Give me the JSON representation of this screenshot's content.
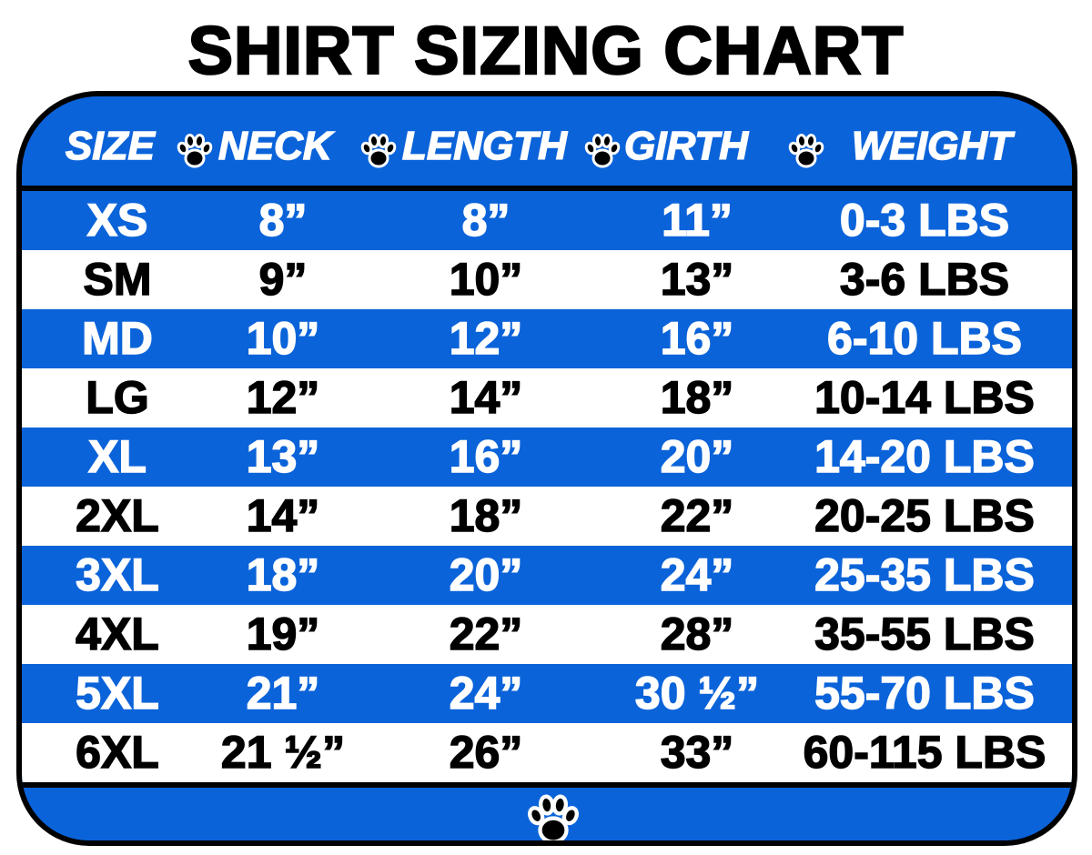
{
  "title": "SHIRT SIZING CHART",
  "colors": {
    "blue": "#0b63d9",
    "white": "#ffffff",
    "black": "#000000"
  },
  "icons": {
    "separator": "paw-icon",
    "footer": "paw-icon"
  },
  "headers": [
    "SIZE",
    "NECK",
    "LENGTH",
    "GIRTH",
    "WEIGHT"
  ],
  "rows": [
    {
      "size": "XS",
      "neck": "8”",
      "length": "8”",
      "girth": "11”",
      "weight": "0-3 LBS"
    },
    {
      "size": "SM",
      "neck": "9”",
      "length": "10”",
      "girth": "13”",
      "weight": "3-6 LBS"
    },
    {
      "size": "MD",
      "neck": "10”",
      "length": "12”",
      "girth": "16”",
      "weight": "6-10 LBS"
    },
    {
      "size": "LG",
      "neck": "12”",
      "length": "14”",
      "girth": "18”",
      "weight": "10-14 LBS"
    },
    {
      "size": "XL",
      "neck": "13”",
      "length": "16”",
      "girth": "20”",
      "weight": "14-20 LBS"
    },
    {
      "size": "2XL",
      "neck": "14”",
      "length": "18”",
      "girth": "22”",
      "weight": "20-25 LBS"
    },
    {
      "size": "3XL",
      "neck": "18”",
      "length": "20”",
      "girth": "24”",
      "weight": "25-35 LBS"
    },
    {
      "size": "4XL",
      "neck": "19”",
      "length": "22”",
      "girth": "28”",
      "weight": "35-55 LBS"
    },
    {
      "size": "5XL",
      "neck": "21”",
      "length": "24”",
      "girth": "30 ½”",
      "weight": "55-70 LBS"
    },
    {
      "size": "6XL",
      "neck": "21 ½”",
      "length": "26”",
      "girth": "33”",
      "weight": "60-115 LBS"
    }
  ]
}
